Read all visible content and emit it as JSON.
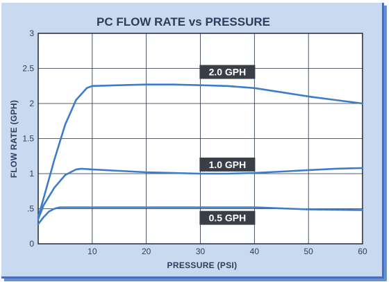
{
  "chart_data": {
    "type": "line",
    "title": "PC FLOW RATE vs PRESSURE",
    "xlabel": "PRESSURE (PSI)",
    "ylabel": "FLOW RATE (GPH)",
    "xlim": [
      0,
      60
    ],
    "ylim": [
      0,
      3
    ],
    "x_ticks": [
      "10",
      "20",
      "30",
      "40",
      "50",
      "60"
    ],
    "y_ticks": [
      "0",
      ".5",
      "1",
      "1.5",
      "2",
      "2.5",
      "3"
    ],
    "grid": true,
    "colors": {
      "line": "#3d7cc9",
      "label_bg": "#3a3f47",
      "background": "#c9daf0",
      "plot_bg": "#ffffff"
    },
    "series": [
      {
        "name": "2.0 GPH",
        "x": [
          0,
          1,
          3,
          5,
          7,
          9,
          10,
          15,
          20,
          25,
          30,
          35,
          40,
          45,
          50,
          55,
          60
        ],
        "y": [
          0.38,
          0.65,
          1.2,
          1.7,
          2.05,
          2.22,
          2.25,
          2.26,
          2.27,
          2.27,
          2.26,
          2.25,
          2.22,
          2.16,
          2.1,
          2.05,
          2.0
        ]
      },
      {
        "name": "1.0 GPH",
        "x": [
          0,
          1,
          3,
          5,
          7,
          8,
          10,
          15,
          20,
          25,
          30,
          35,
          40,
          45,
          50,
          55,
          60
        ],
        "y": [
          0.35,
          0.55,
          0.8,
          0.98,
          1.06,
          1.07,
          1.06,
          1.04,
          1.02,
          1.01,
          1.0,
          1.0,
          1.01,
          1.03,
          1.05,
          1.07,
          1.08
        ]
      },
      {
        "name": "0.5 GPH",
        "x": [
          0,
          1,
          2,
          3,
          4,
          5,
          10,
          20,
          30,
          40,
          50,
          60
        ],
        "y": [
          0.28,
          0.38,
          0.46,
          0.5,
          0.52,
          0.52,
          0.52,
          0.52,
          0.52,
          0.52,
          0.49,
          0.48
        ]
      }
    ],
    "series_labels": [
      {
        "series": "2.0 GPH",
        "at_x": 35,
        "at_y": 2.45
      },
      {
        "series": "1.0 GPH",
        "at_x": 35,
        "at_y": 1.13
      },
      {
        "series": "0.5 GPH",
        "at_x": 35,
        "at_y": 0.37
      }
    ]
  }
}
